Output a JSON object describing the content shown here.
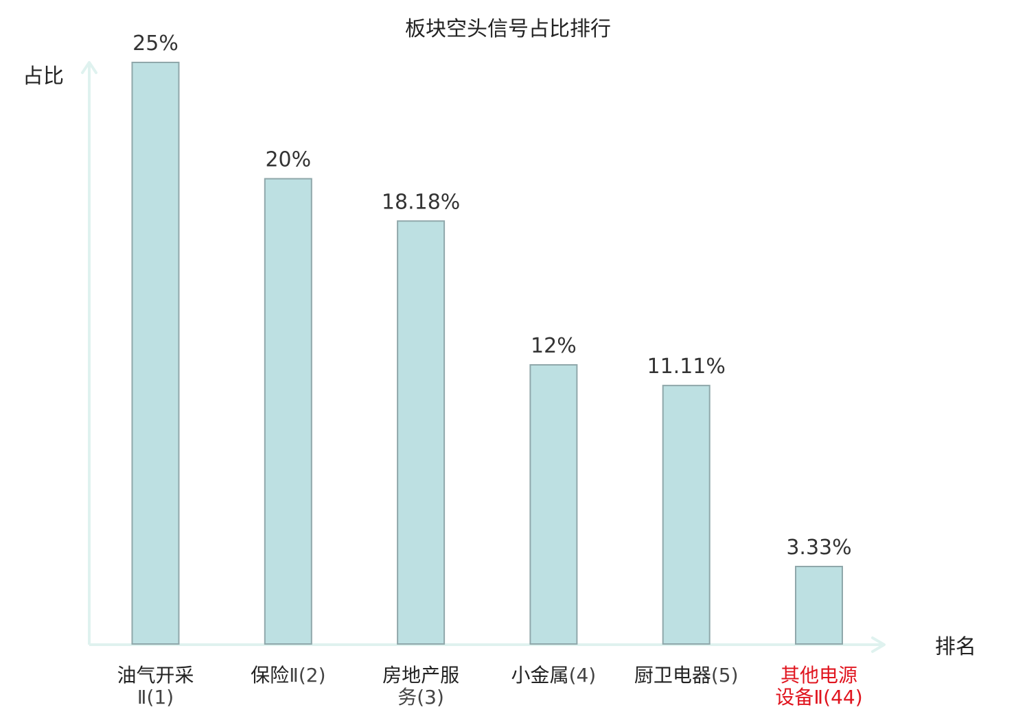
{
  "chart_data": {
    "type": "bar",
    "title": "板块空头信号占比排行",
    "ylabel": "占比",
    "xlabel": "排名",
    "ylim": [
      0,
      25
    ],
    "grid": false,
    "categories": [
      {
        "name": "油气开采",
        "rank": "Ⅱ(1)",
        "highlight": false
      },
      {
        "name": "保险",
        "rank": "Ⅱ(2)",
        "highlight": false
      },
      {
        "name": "房地产服",
        "rank": "务(3)",
        "highlight": false
      },
      {
        "name": "小金属",
        "rank": "(4)",
        "highlight": false
      },
      {
        "name": "厨卫电器",
        "rank": "(5)",
        "highlight": false
      },
      {
        "name": "其他电源",
        "rank": "设备Ⅱ(44)",
        "highlight": true
      }
    ],
    "values": [
      25,
      20,
      18.18,
      12,
      11.11,
      3.33
    ],
    "value_labels": [
      "25%",
      "20%",
      "18.18%",
      "12%",
      "11.11%",
      "3.33%"
    ]
  },
  "colors": {
    "bar_fill": "#bde0e2",
    "bar_stroke": "#8fa7aa",
    "axis": "#dff2ef",
    "text": "#222222",
    "value_text": "#333333",
    "rank_text": "#444444",
    "highlight": "#e0141e"
  }
}
